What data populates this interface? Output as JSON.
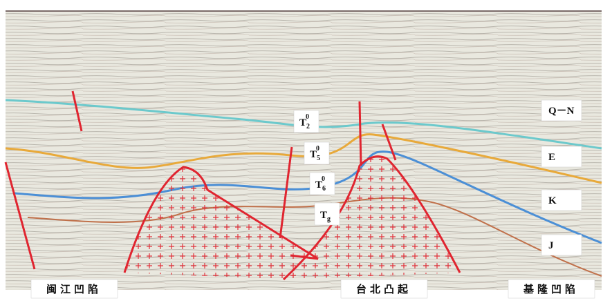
{
  "horizons": [
    {
      "base": "T",
      "sub": "2",
      "sup": "0"
    },
    {
      "base": "T",
      "sub": "5",
      "sup": "0"
    },
    {
      "base": "T",
      "sub": "6",
      "sup": "0"
    },
    {
      "base": "T",
      "sub": "g"
    }
  ],
  "formations": [
    "Q－N",
    "E",
    "K",
    "J"
  ],
  "regions": [
    "闽江凹陷",
    "台北凸起",
    "基隆凹陷"
  ]
}
